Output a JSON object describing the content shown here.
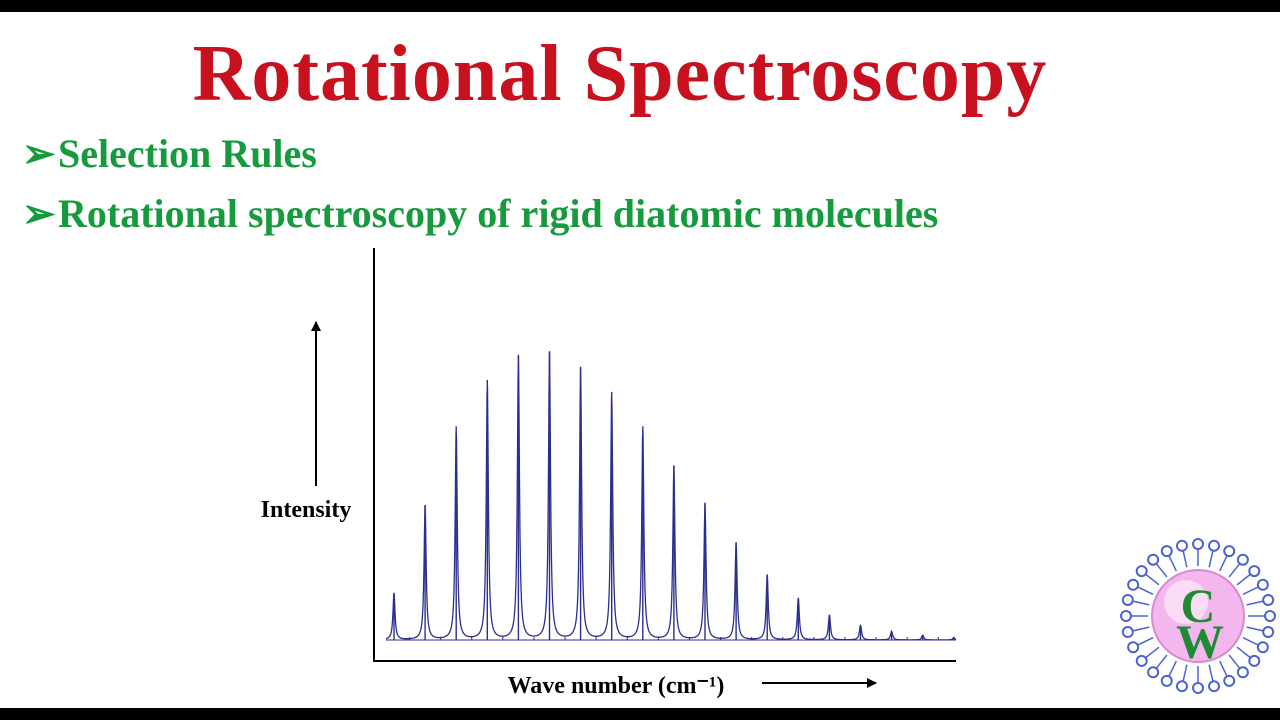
{
  "slide": {
    "title": "Rotational Spectroscopy",
    "bullet_marker": "➢",
    "bullets": [
      "Selection Rules",
      "Rotational spectroscopy of rigid diatomic molecules"
    ]
  },
  "colors": {
    "title": "#c8101e",
    "bullets": "#159a3c",
    "spectrum": "#2b2f8f",
    "axes": "#000000"
  },
  "logo": {
    "text_top": "C",
    "text_bottom": "W",
    "colors": {
      "ring": "#4a63d0",
      "core": "#f3b7ee",
      "letters": "#1e8a34"
    }
  },
  "chart_data": {
    "type": "line",
    "title": "",
    "xlabel": "Wave number (cm⁻¹)",
    "ylabel": "Intensity",
    "grid": false,
    "legend": "none",
    "ylim": [
      0,
      1
    ],
    "x": [
      1,
      2,
      3,
      4,
      5,
      6,
      7,
      8,
      9,
      10,
      11,
      12,
      13,
      14,
      15,
      16,
      17,
      18,
      19
    ],
    "series": [
      {
        "values": [
          0.156,
          0.45,
          0.712,
          0.867,
          0.951,
          0.959,
          0.911,
          0.827,
          0.712,
          0.582,
          0.456,
          0.326,
          0.219,
          0.141,
          0.084,
          0.05,
          0.029,
          0.016,
          0.008
        ]
      }
    ]
  }
}
